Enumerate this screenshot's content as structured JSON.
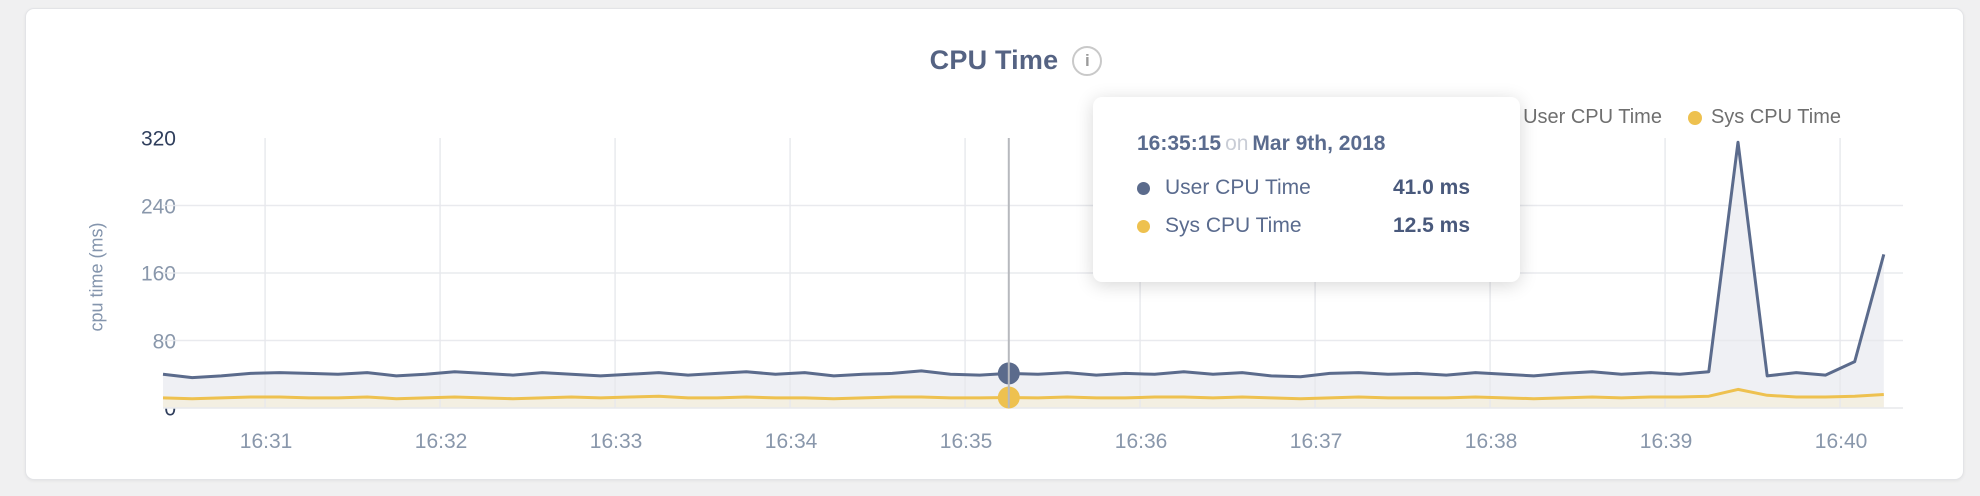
{
  "card": {
    "title": "CPU Time",
    "info_icon": "i"
  },
  "legend": [
    {
      "label": "User CPU Time",
      "color": "#5b6b8c"
    },
    {
      "label": "Sys CPU Time",
      "color": "#eec14f"
    }
  ],
  "tooltip": {
    "time": "16:35:15",
    "connector": "on",
    "date": "Mar 9th, 2018",
    "rows": [
      {
        "label": "User CPU Time",
        "value": "41.0 ms",
        "color": "#5b6b8c"
      },
      {
        "label": "Sys CPU Time",
        "value": "12.5 ms",
        "color": "#eec14f"
      }
    ]
  },
  "chart_data": {
    "type": "area",
    "title": "CPU Time",
    "xlabel": "",
    "ylabel": "cpu time (ms)",
    "ylim": [
      0,
      320
    ],
    "grid": true,
    "legend_position": "top-right",
    "yticks": [
      {
        "label": "320",
        "value": 320,
        "color": "#2f3e5c",
        "grid": false
      },
      {
        "label": "240",
        "value": 240,
        "color": "#8997ab",
        "grid": true
      },
      {
        "label": "160",
        "value": 160,
        "color": "#8997ab",
        "grid": true
      },
      {
        "label": "80",
        "value": 80,
        "color": "#8997ab",
        "grid": true
      },
      {
        "label": "0",
        "value": 0,
        "color": "#2f3e5c",
        "grid": false
      }
    ],
    "xticks": [
      "16:31",
      "16:32",
      "16:33",
      "16:34",
      "16:35",
      "16:36",
      "16:37",
      "16:38",
      "16:39",
      "16:40"
    ],
    "x": [
      "16:30:25",
      "16:30:35",
      "16:30:45",
      "16:30:55",
      "16:31:05",
      "16:31:15",
      "16:31:25",
      "16:31:35",
      "16:31:45",
      "16:31:55",
      "16:32:05",
      "16:32:15",
      "16:32:25",
      "16:32:35",
      "16:32:45",
      "16:32:55",
      "16:33:05",
      "16:33:15",
      "16:33:25",
      "16:33:35",
      "16:33:45",
      "16:33:55",
      "16:34:05",
      "16:34:15",
      "16:34:25",
      "16:34:35",
      "16:34:45",
      "16:34:55",
      "16:35:05",
      "16:35:15",
      "16:35:25",
      "16:35:35",
      "16:35:45",
      "16:35:55",
      "16:36:05",
      "16:36:15",
      "16:36:25",
      "16:36:35",
      "16:36:45",
      "16:36:55",
      "16:37:05",
      "16:37:15",
      "16:37:25",
      "16:37:35",
      "16:37:45",
      "16:37:55",
      "16:38:05",
      "16:38:15",
      "16:38:25",
      "16:38:35",
      "16:38:45",
      "16:38:55",
      "16:39:05",
      "16:39:15",
      "16:39:25",
      "16:39:35",
      "16:39:45",
      "16:39:55",
      "16:40:05",
      "16:40:15"
    ],
    "series": [
      {
        "name": "User CPU Time",
        "color": "#5b6b8c",
        "fill": "#eff0f4",
        "values": [
          40,
          36,
          38,
          41,
          42,
          41,
          40,
          42,
          38,
          40,
          43,
          41,
          39,
          42,
          40,
          38,
          40,
          42,
          39,
          41,
          43,
          40,
          42,
          38,
          40,
          41,
          44,
          40,
          39,
          41,
          40,
          42,
          39,
          41,
          40,
          43,
          40,
          42,
          38,
          37,
          41,
          42,
          40,
          41,
          39,
          42,
          40,
          38,
          41,
          43,
          40,
          42,
          40,
          43,
          315,
          38,
          42,
          39,
          55,
          182
        ]
      },
      {
        "name": "Sys CPU Time",
        "color": "#eec14f",
        "fill": "#f3efe2",
        "values": [
          12,
          11,
          12,
          13,
          13,
          12,
          12,
          13,
          11,
          12,
          13,
          12,
          11,
          12,
          13,
          12,
          13,
          14,
          12,
          12,
          13,
          12,
          12,
          11,
          12,
          13,
          13,
          12,
          12,
          12.5,
          12,
          13,
          12,
          12,
          13,
          13,
          12,
          13,
          12,
          11,
          12,
          13,
          12,
          12,
          12,
          13,
          12,
          11,
          12,
          13,
          12,
          13,
          13,
          14,
          22,
          15,
          13,
          13,
          14,
          16
        ]
      }
    ],
    "hover": {
      "time": "16:35:15",
      "values": [
        41.0,
        12.5
      ]
    }
  }
}
